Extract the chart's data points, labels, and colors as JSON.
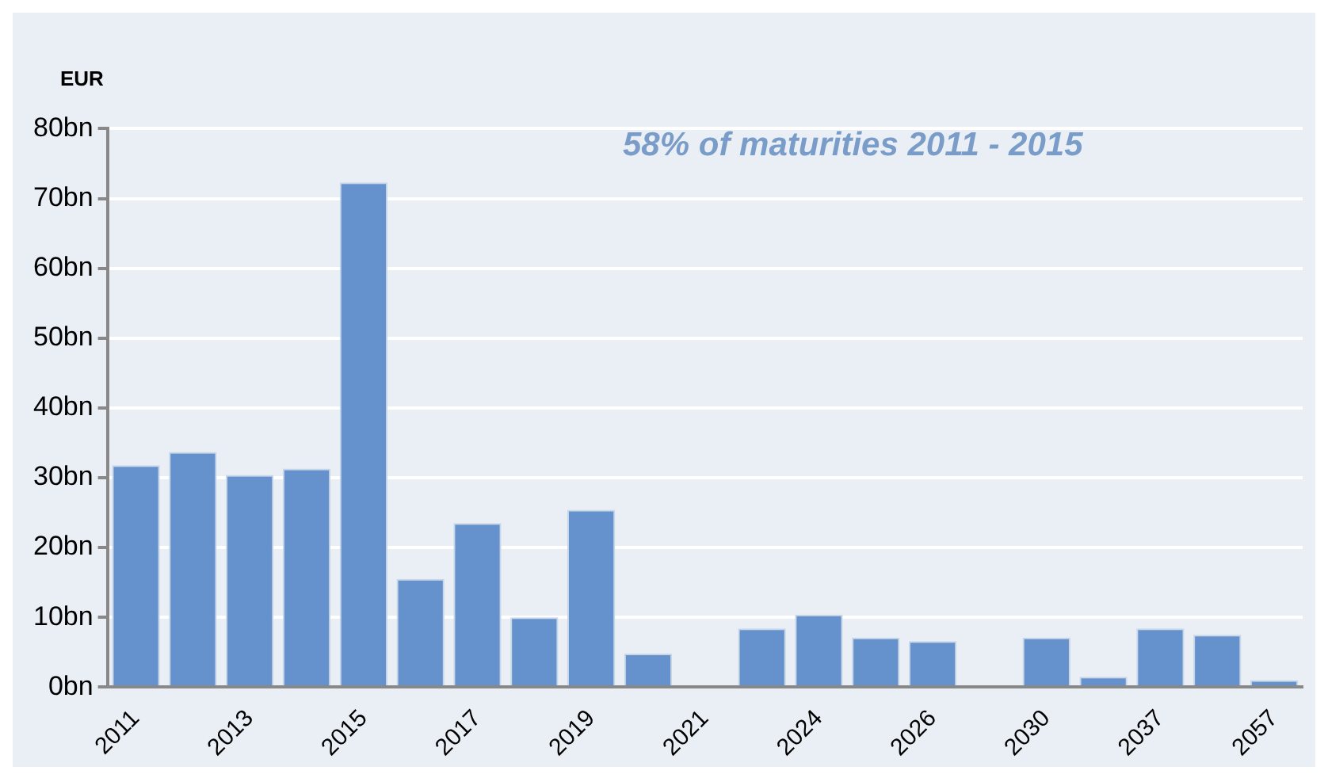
{
  "chart_data": {
    "type": "bar",
    "ylabel": "EUR",
    "annotations": [
      "58% of maturities 2011 - 2015"
    ],
    "categories": [
      "2011",
      null,
      "2013",
      null,
      "2015",
      null,
      "2017",
      null,
      "2019",
      null,
      "2021",
      null,
      "2024",
      null,
      "2026",
      null,
      "2030",
      null,
      "2037",
      null,
      "2057"
    ],
    "values": [
      31.8,
      33.7,
      30.4,
      31.3,
      72.3,
      15.5,
      23.5,
      10.0,
      25.4,
      4.8,
      null,
      8.4,
      10.4,
      7.1,
      6.6,
      null,
      7.1,
      1.5,
      8.4,
      7.5,
      1.0
    ],
    "color": "#6591cc",
    "ylim": [
      0,
      80
    ],
    "yticks": [
      {
        "value": 0,
        "label": "0bn"
      },
      {
        "value": 10,
        "label": "10bn"
      },
      {
        "value": 20,
        "label": "20bn"
      },
      {
        "value": 30,
        "label": "30bn"
      },
      {
        "value": 40,
        "label": "40bn"
      },
      {
        "value": 50,
        "label": "50bn"
      },
      {
        "value": 60,
        "label": "60bn"
      },
      {
        "value": 70,
        "label": "70bn"
      },
      {
        "value": 80,
        "label": "80bn"
      }
    ],
    "grid": "y",
    "legend": false
  }
}
